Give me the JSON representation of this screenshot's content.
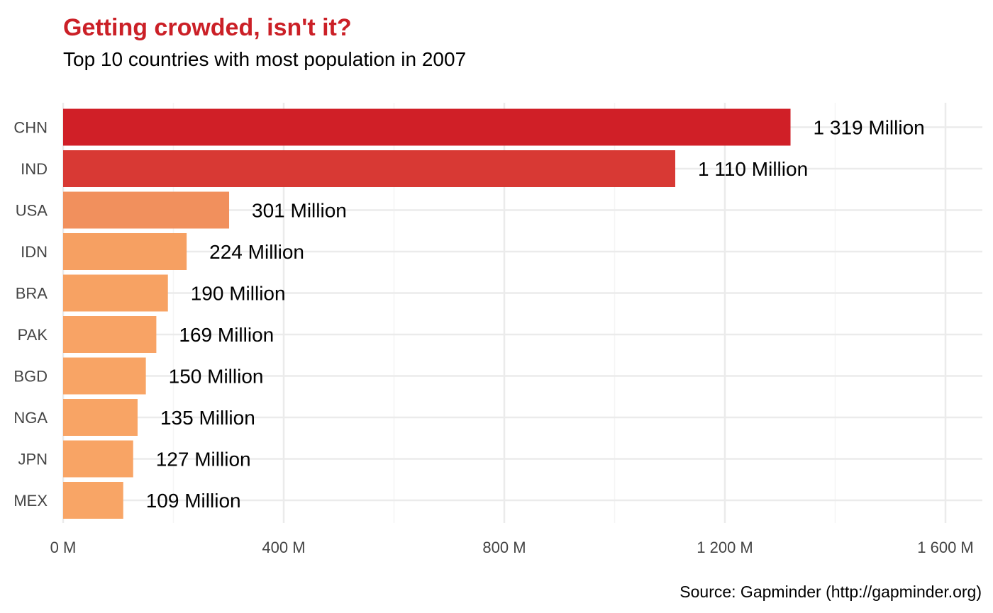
{
  "header": {
    "title": "Getting crowded, isn't it?",
    "subtitle": "Top 10 countries with most population in 2007"
  },
  "caption": "Source: Gapminder (http://gapminder.org)",
  "colors": {
    "title": "#cb2027",
    "grid": "#ebebeb",
    "bar_low": "#f8a465",
    "bar_high": "#d01f27"
  },
  "chart_data": {
    "type": "bar",
    "orientation": "horizontal",
    "title": "Getting crowded, isn't it?",
    "subtitle": "Top 10 countries with most population in 2007",
    "categories": [
      "CHN",
      "IND",
      "USA",
      "IDN",
      "BRA",
      "PAK",
      "BGD",
      "NGA",
      "JPN",
      "MEX"
    ],
    "values": [
      1319,
      1110,
      301,
      224,
      190,
      169,
      150,
      135,
      127,
      109
    ],
    "data_labels": [
      "1 319 Million",
      "1 110 Million",
      "301 Million",
      "224 Million",
      "190 Million",
      "169 Million",
      "150 Million",
      "135 Million",
      "127 Million",
      "109 Million"
    ],
    "bar_colors": [
      "#d01f27",
      "#d83934",
      "#f1905d",
      "#f6a062",
      "#f7a263",
      "#f8a365",
      "#f8a465",
      "#f8a465",
      "#f8a465",
      "#f8a566"
    ],
    "x_ticks": [
      0,
      400,
      800,
      1200,
      1600
    ],
    "x_tick_labels": [
      "0 M",
      "400 M",
      "800 M",
      "1 200 M",
      "1 600 M"
    ],
    "xlim": [
      0,
      1660
    ],
    "xlabel": "",
    "ylabel": "",
    "grid": true,
    "legend": false,
    "caption": "Source: Gapminder (http://gapminder.org)"
  }
}
